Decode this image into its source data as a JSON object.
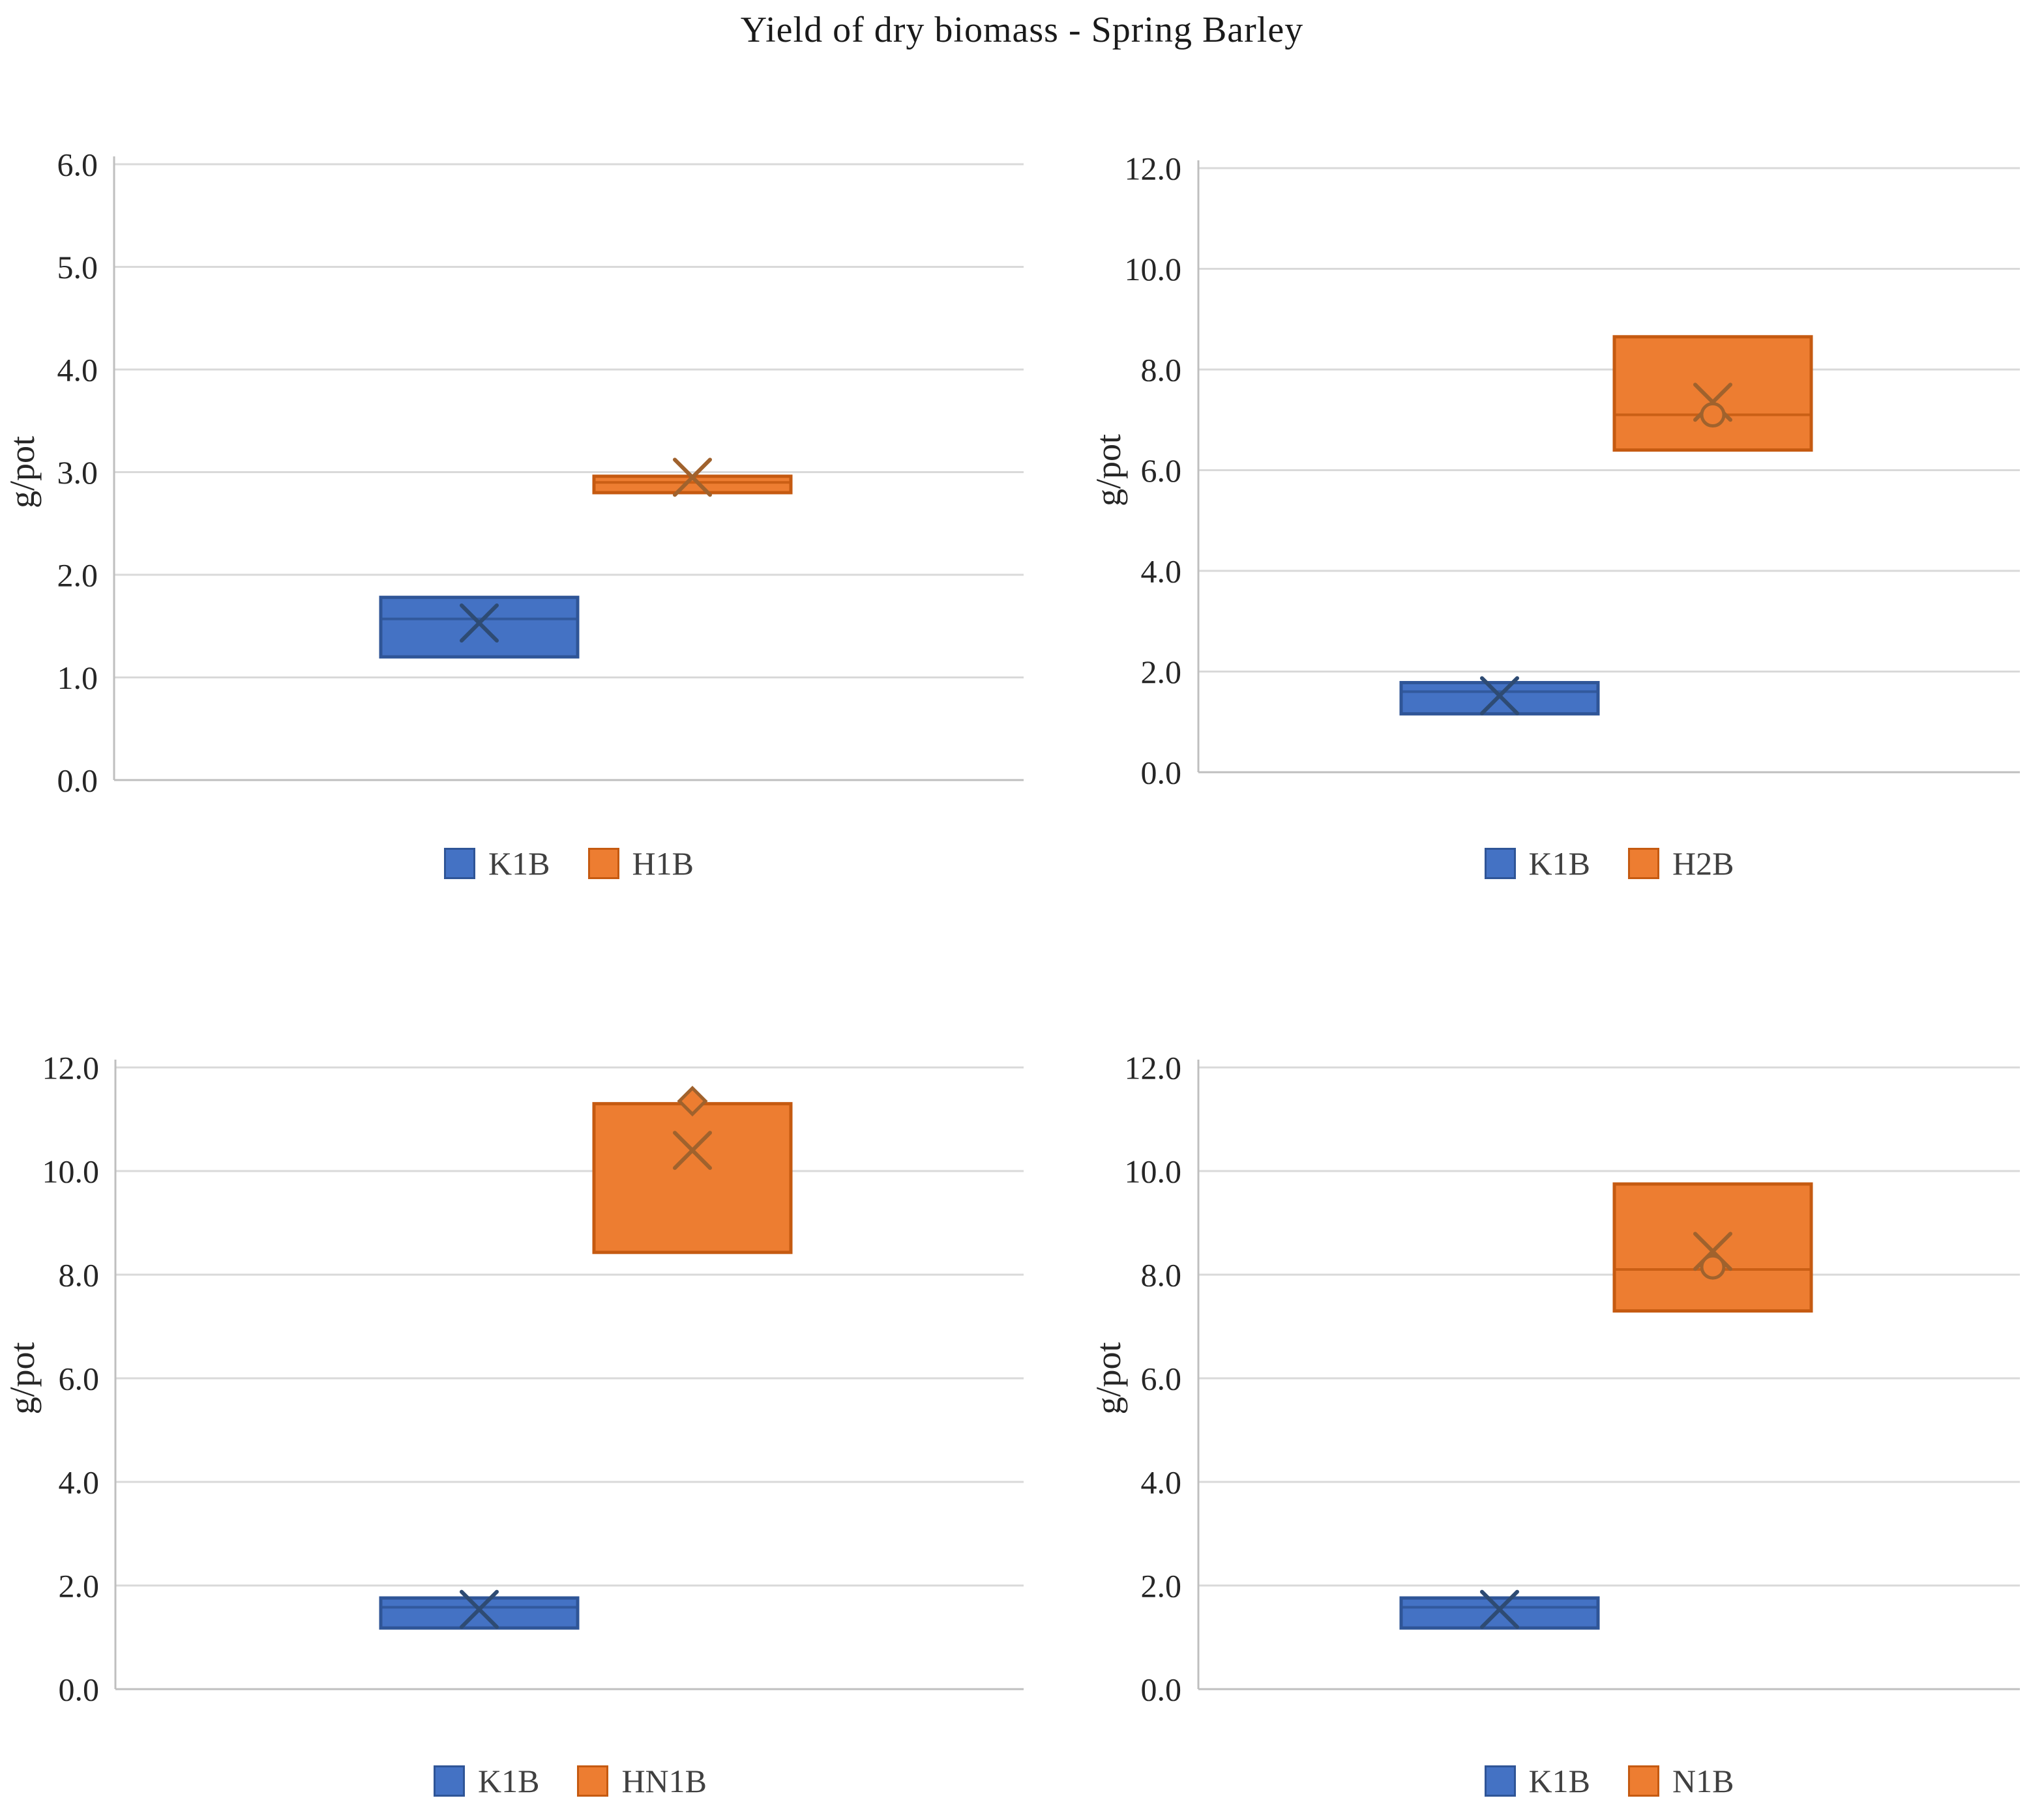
{
  "title": "Yield of dry biomass - Spring Barley",
  "colors": {
    "blue_fill": "#4472C4",
    "blue_border": "#2F5597",
    "blue_marker": "#2E4B73",
    "orange_fill": "#ED7D31",
    "orange_border": "#C55A11",
    "orange_marker": "#A0622D",
    "gridline": "#D9D9D9",
    "axis_line": "#BFBFBF",
    "tick_text": "#262626",
    "legend_text": "#404040"
  },
  "chart_data": [
    {
      "type": "box",
      "panel": "top_left",
      "ylabel": "g/pot",
      "ylim": [
        0,
        6
      ],
      "ystep": 1,
      "grid": true,
      "legend_position": "bottom",
      "tick_labels": [
        "6.0",
        "5.0",
        "4.0",
        "3.0",
        "2.0",
        "1.0",
        "0.0"
      ],
      "series": [
        {
          "name": "K1B",
          "fill": "#4472C4",
          "border": "#2F5597",
          "marker": "#2E4B73",
          "q1": 1.2,
          "median": 1.57,
          "q3": 1.78,
          "mean": 1.53,
          "points": []
        },
        {
          "name": "H1B",
          "fill": "#ED7D31",
          "border": "#C55A11",
          "marker": "#A0622D",
          "q1": 2.8,
          "median": 2.9,
          "q3": 2.96,
          "mean": 2.95,
          "points": []
        }
      ]
    },
    {
      "type": "box",
      "panel": "top_right",
      "ylabel": "g/pot",
      "ylim": [
        0,
        12
      ],
      "ystep": 2,
      "grid": true,
      "legend_position": "bottom",
      "tick_labels": [
        "12.0",
        "10.0",
        "8.0",
        "6.0",
        "4.0",
        "2.0",
        "0.0"
      ],
      "series": [
        {
          "name": "K1B",
          "fill": "#4472C4",
          "border": "#2F5597",
          "marker": "#2E4B73",
          "q1": 1.16,
          "median": 1.6,
          "q3": 1.78,
          "mean": 1.52,
          "points": []
        },
        {
          "name": "H2B",
          "fill": "#ED7D31",
          "border": "#C55A11",
          "marker": "#A0622D",
          "q1": 6.4,
          "median": 7.1,
          "q3": 8.65,
          "mean": 7.35,
          "points": [
            {
              "value": 7.1,
              "shape": "circle"
            }
          ]
        }
      ]
    },
    {
      "type": "box",
      "panel": "bottom_left",
      "ylabel": "g/pot",
      "ylim": [
        0,
        12
      ],
      "ystep": 2,
      "grid": true,
      "legend_position": "bottom",
      "tick_labels": [
        "12.0",
        "10.0",
        "8.0",
        "6.0",
        "4.0",
        "2.0",
        "0.0"
      ],
      "series": [
        {
          "name": "K1B",
          "fill": "#4472C4",
          "border": "#2F5597",
          "marker": "#2E4B73",
          "q1": 1.18,
          "median": 1.58,
          "q3": 1.76,
          "mean": 1.54,
          "points": []
        },
        {
          "name": "HN1B",
          "fill": "#ED7D31",
          "border": "#C55A11",
          "marker": "#A0622D",
          "q1": 8.43,
          "median": 11.3,
          "q3": 11.3,
          "mean": 10.4,
          "points": [
            {
              "value": 11.35,
              "shape": "diamond"
            }
          ]
        }
      ]
    },
    {
      "type": "box",
      "panel": "bottom_right",
      "ylabel": "g/pot",
      "ylim": [
        0,
        12
      ],
      "ystep": 2,
      "grid": true,
      "legend_position": "bottom",
      "tick_labels": [
        "12.0",
        "10.0",
        "8.0",
        "6.0",
        "4.0",
        "2.0",
        "0.0"
      ],
      "series": [
        {
          "name": "K1B",
          "fill": "#4472C4",
          "border": "#2F5597",
          "marker": "#2E4B73",
          "q1": 1.18,
          "median": 1.58,
          "q3": 1.76,
          "mean": 1.54,
          "points": []
        },
        {
          "name": "N1B",
          "fill": "#ED7D31",
          "border": "#C55A11",
          "marker": "#A0622D",
          "q1": 7.3,
          "median": 8.1,
          "q3": 9.75,
          "mean": 8.45,
          "points": [
            {
              "value": 8.15,
              "shape": "circle"
            }
          ]
        }
      ]
    }
  ]
}
